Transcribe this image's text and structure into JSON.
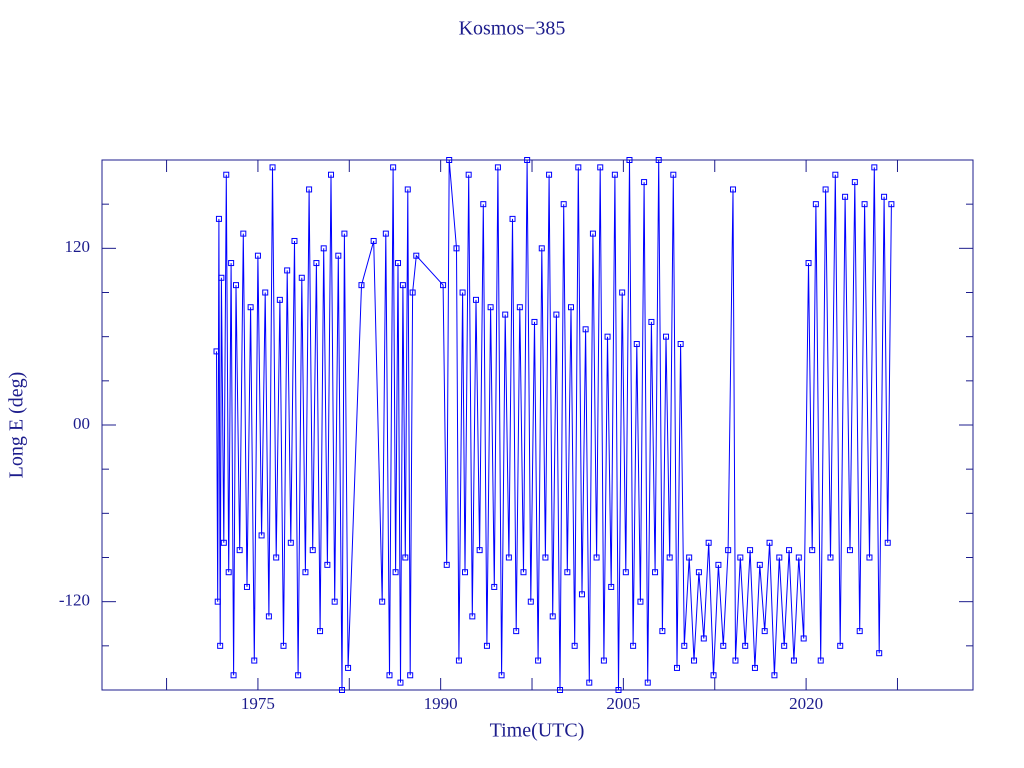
{
  "chart_data": {
    "type": "line",
    "title": "Kosmos−385",
    "x_label": "Time(UTC)",
    "y_label": "Long E (deg)",
    "xlim": [
      1962.2,
      2033.7
    ],
    "xticks": [
      1975,
      1990,
      2005,
      2020
    ],
    "xminor": [
      1967.5,
      1982.5,
      1997.5,
      2012.5,
      2027.5
    ],
    "ylim": [
      -180,
      180
    ],
    "yticks": [
      -120,
      {
        "value": 0,
        "label": "00"
      },
      120
    ],
    "yminor": [
      -150,
      -90,
      -60,
      -30,
      30,
      60,
      90,
      150
    ],
    "grid": false,
    "markers": "square",
    "x": [
      1971.6,
      1971.7,
      1971.8,
      1971.9,
      1972.0,
      1972.2,
      1972.4,
      1972.6,
      1972.8,
      1973.0,
      1973.2,
      1973.5,
      1973.8,
      1974.1,
      1974.4,
      1974.7,
      1975.0,
      1975.3,
      1975.6,
      1975.9,
      1976.2,
      1976.5,
      1976.8,
      1977.1,
      1977.4,
      1977.7,
      1978.0,
      1978.3,
      1978.6,
      1978.9,
      1979.2,
      1979.5,
      1979.8,
      1980.1,
      1980.4,
      1980.7,
      1981.0,
      1981.3,
      1981.6,
      1981.9,
      1982.1,
      1982.4,
      1983.5,
      1984.5,
      1985.2,
      1985.5,
      1985.8,
      1986.1,
      1986.3,
      1986.5,
      1986.7,
      1986.9,
      1987.1,
      1987.3,
      1987.5,
      1987.7,
      1988.0,
      1990.2,
      1990.5,
      1990.7,
      1991.3,
      1991.5,
      1991.8,
      1992.0,
      1992.3,
      1992.6,
      1992.9,
      1993.2,
      1993.5,
      1993.8,
      1994.1,
      1994.4,
      1994.7,
      1995.0,
      1995.3,
      1995.6,
      1995.9,
      1996.2,
      1996.5,
      1996.8,
      1997.1,
      1997.4,
      1997.7,
      1998.0,
      1998.3,
      1998.6,
      1998.9,
      1999.2,
      1999.5,
      1999.8,
      2000.1,
      2000.4,
      2000.7,
      2001.0,
      2001.3,
      2001.6,
      2001.9,
      2002.2,
      2002.5,
      2002.8,
      2003.1,
      2003.4,
      2003.7,
      2004.0,
      2004.3,
      2004.6,
      2004.9,
      2005.2,
      2005.5,
      2005.8,
      2006.1,
      2006.4,
      2006.7,
      2007.0,
      2007.3,
      2007.6,
      2007.9,
      2008.2,
      2008.5,
      2008.8,
      2009.1,
      2009.4,
      2009.7,
      2010.0,
      2010.4,
      2010.8,
      2011.2,
      2011.6,
      2012.0,
      2012.4,
      2012.8,
      2013.2,
      2013.6,
      2014.0,
      2014.2,
      2014.6,
      2015.0,
      2015.4,
      2015.8,
      2016.2,
      2016.6,
      2017.0,
      2017.4,
      2017.8,
      2018.2,
      2018.6,
      2019.0,
      2019.4,
      2019.8,
      2020.2,
      2020.5,
      2020.8,
      2021.2,
      2021.6,
      2022.0,
      2022.4,
      2022.8,
      2023.2,
      2023.6,
      2024.0,
      2024.4,
      2024.8,
      2025.2,
      2025.6,
      2026.0,
      2026.4,
      2026.7,
      2027.0
    ],
    "series": [
      {
        "color": "#0000ff",
        "values": [
          50,
          -120,
          140,
          -150,
          100,
          -80,
          170,
          -100,
          110,
          -170,
          95,
          -85,
          130,
          -110,
          80,
          -160,
          115,
          -75,
          90,
          -130,
          175,
          -90,
          85,
          -150,
          105,
          -80,
          125,
          -170,
          100,
          -100,
          160,
          -85,
          110,
          -140,
          120,
          -95,
          170,
          -120,
          115,
          -180,
          130,
          -165,
          95,
          125,
          -120,
          130,
          -170,
          175,
          -100,
          110,
          -175,
          95,
          -90,
          160,
          -170,
          90,
          115,
          95,
          -95,
          180,
          120,
          -160,
          90,
          -100,
          170,
          -130,
          85,
          -85,
          150,
          -150,
          80,
          -110,
          175,
          -170,
          75,
          -90,
          140,
          -140,
          80,
          -100,
          180,
          -120,
          70,
          -160,
          120,
          -90,
          170,
          -130,
          75,
          -180,
          150,
          -100,
          80,
          -150,
          175,
          -115,
          65,
          -175,
          130,
          -90,
          175,
          -160,
          60,
          -110,
          170,
          -180,
          90,
          -100,
          180,
          -150,
          55,
          -120,
          165,
          -175,
          70,
          -100,
          180,
          -140,
          60,
          -90,
          170,
          -165,
          55,
          -150,
          -90,
          -160,
          -100,
          -145,
          -80,
          -170,
          -95,
          -150,
          -85,
          160,
          -160,
          -90,
          -150,
          -85,
          -165,
          -95,
          -140,
          -80,
          -170,
          -90,
          -150,
          -85,
          -160,
          -90,
          -145,
          110,
          -85,
          150,
          -160,
          160,
          -90,
          170,
          -150,
          155,
          -85,
          165,
          -140,
          150,
          -90,
          175,
          -155,
          155,
          -80,
          150
        ]
      }
    ]
  }
}
